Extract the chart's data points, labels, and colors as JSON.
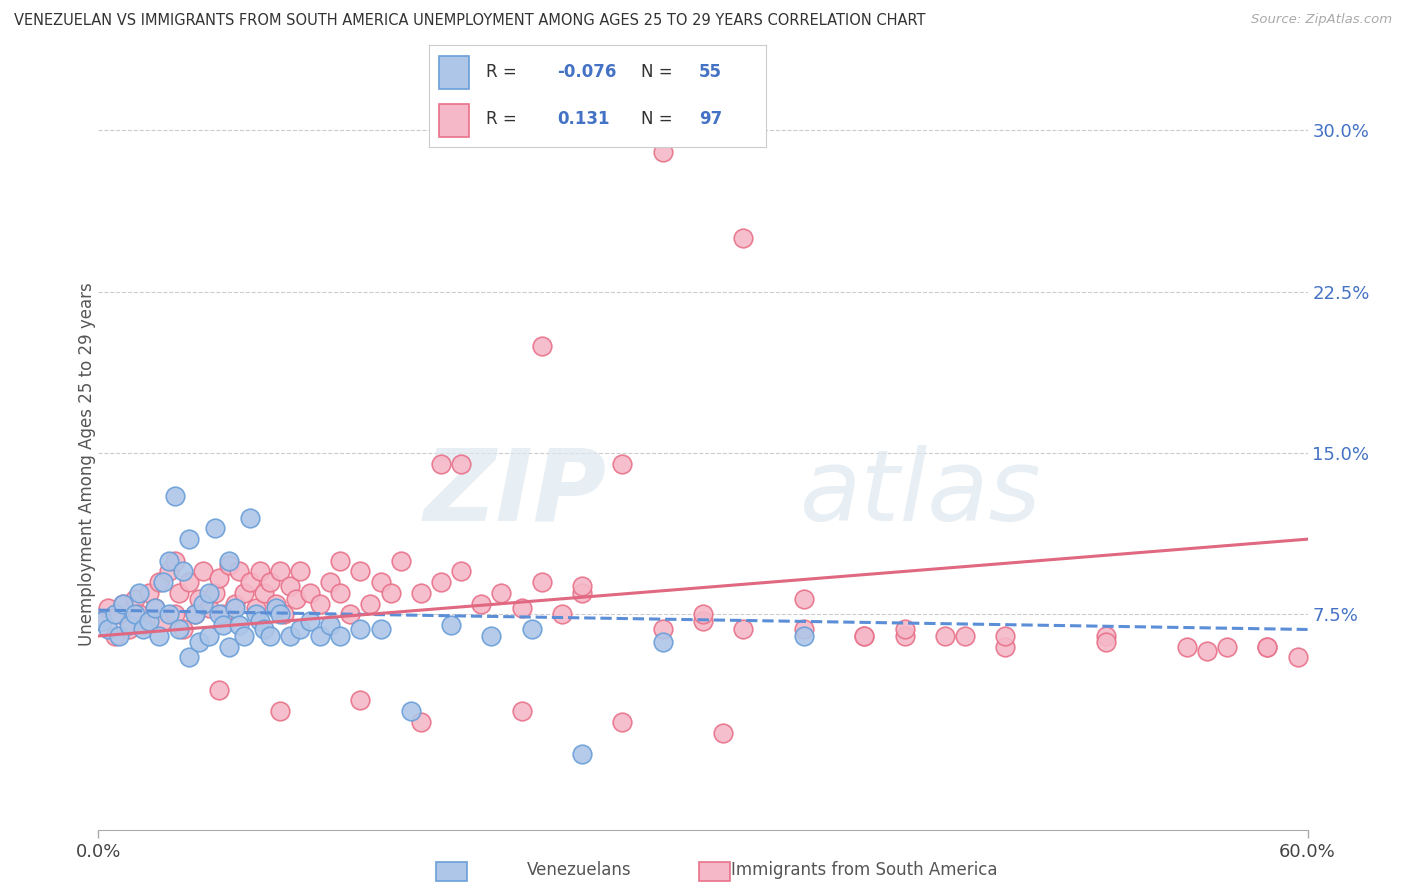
{
  "title": "VENEZUELAN VS IMMIGRANTS FROM SOUTH AMERICA UNEMPLOYMENT AMONG AGES 25 TO 29 YEARS CORRELATION CHART",
  "source": "Source: ZipAtlas.com",
  "ylabel": "Unemployment Among Ages 25 to 29 years",
  "ytick_labels": [
    "7.5%",
    "15.0%",
    "22.5%",
    "30.0%"
  ],
  "ytick_values": [
    0.075,
    0.15,
    0.225,
    0.3
  ],
  "xlim": [
    0.0,
    0.6
  ],
  "ylim": [
    -0.025,
    0.315
  ],
  "legend_r_blue": "-0.076",
  "legend_n_blue": "55",
  "legend_r_pink": "0.131",
  "legend_n_pink": "97",
  "blue_scatter_color": "#aec6e8",
  "blue_edge_color": "#6a9fd8",
  "pink_scatter_color": "#f5b8c8",
  "pink_edge_color": "#e8728a",
  "blue_line_color": "#5b8ed6",
  "pink_line_color": "#e06880",
  "watermark_zip": "ZIP",
  "watermark_atlas": "atlas",
  "background_color": "#ffffff",
  "grid_color": "#cccccc",
  "venezuelans_x": [
    0.002,
    0.005,
    0.008,
    0.01,
    0.012,
    0.015,
    0.018,
    0.02,
    0.022,
    0.025,
    0.028,
    0.03,
    0.032,
    0.035,
    0.035,
    0.038,
    0.04,
    0.042,
    0.045,
    0.045,
    0.048,
    0.05,
    0.052,
    0.055,
    0.055,
    0.058,
    0.06,
    0.062,
    0.065,
    0.065,
    0.068,
    0.07,
    0.072,
    0.075,
    0.078,
    0.08,
    0.082,
    0.085,
    0.088,
    0.09,
    0.095,
    0.1,
    0.105,
    0.11,
    0.115,
    0.12,
    0.13,
    0.14,
    0.155,
    0.175,
    0.195,
    0.215,
    0.24,
    0.28,
    0.35
  ],
  "venezuelans_y": [
    0.072,
    0.068,
    0.075,
    0.065,
    0.08,
    0.07,
    0.075,
    0.085,
    0.068,
    0.072,
    0.078,
    0.065,
    0.09,
    0.075,
    0.1,
    0.13,
    0.068,
    0.095,
    0.055,
    0.11,
    0.075,
    0.062,
    0.08,
    0.085,
    0.065,
    0.115,
    0.075,
    0.07,
    0.1,
    0.06,
    0.078,
    0.07,
    0.065,
    0.12,
    0.075,
    0.072,
    0.068,
    0.065,
    0.078,
    0.075,
    0.065,
    0.068,
    0.072,
    0.065,
    0.07,
    0.065,
    0.068,
    0.068,
    0.03,
    0.07,
    0.065,
    0.068,
    0.01,
    0.062,
    0.065
  ],
  "immigrants_x": [
    0.002,
    0.005,
    0.008,
    0.01,
    0.012,
    0.015,
    0.018,
    0.02,
    0.022,
    0.025,
    0.028,
    0.03,
    0.032,
    0.035,
    0.038,
    0.038,
    0.04,
    0.042,
    0.045,
    0.048,
    0.05,
    0.052,
    0.055,
    0.058,
    0.06,
    0.062,
    0.065,
    0.068,
    0.07,
    0.072,
    0.075,
    0.078,
    0.08,
    0.082,
    0.085,
    0.088,
    0.09,
    0.092,
    0.095,
    0.098,
    0.1,
    0.105,
    0.11,
    0.115,
    0.12,
    0.125,
    0.13,
    0.135,
    0.14,
    0.145,
    0.15,
    0.16,
    0.17,
    0.18,
    0.19,
    0.2,
    0.21,
    0.22,
    0.23,
    0.24,
    0.17,
    0.22,
    0.26,
    0.28,
    0.3,
    0.32,
    0.35,
    0.38,
    0.4,
    0.43,
    0.28,
    0.32,
    0.38,
    0.42,
    0.45,
    0.5,
    0.54,
    0.56,
    0.58,
    0.595,
    0.12,
    0.18,
    0.24,
    0.3,
    0.35,
    0.4,
    0.45,
    0.5,
    0.55,
    0.58,
    0.06,
    0.09,
    0.13,
    0.16,
    0.21,
    0.26,
    0.31
  ],
  "immigrants_y": [
    0.072,
    0.078,
    0.065,
    0.075,
    0.08,
    0.068,
    0.082,
    0.075,
    0.07,
    0.085,
    0.078,
    0.09,
    0.072,
    0.095,
    0.075,
    0.1,
    0.085,
    0.068,
    0.09,
    0.075,
    0.082,
    0.095,
    0.078,
    0.085,
    0.092,
    0.075,
    0.098,
    0.08,
    0.095,
    0.085,
    0.09,
    0.078,
    0.095,
    0.085,
    0.09,
    0.08,
    0.095,
    0.075,
    0.088,
    0.082,
    0.095,
    0.085,
    0.08,
    0.09,
    0.085,
    0.075,
    0.095,
    0.08,
    0.09,
    0.085,
    0.1,
    0.085,
    0.09,
    0.145,
    0.08,
    0.085,
    0.078,
    0.09,
    0.075,
    0.085,
    0.145,
    0.2,
    0.145,
    0.068,
    0.072,
    0.068,
    0.068,
    0.065,
    0.065,
    0.065,
    0.29,
    0.25,
    0.065,
    0.065,
    0.06,
    0.065,
    0.06,
    0.06,
    0.06,
    0.055,
    0.1,
    0.095,
    0.088,
    0.075,
    0.082,
    0.068,
    0.065,
    0.062,
    0.058,
    0.06,
    0.04,
    0.03,
    0.035,
    0.025,
    0.03,
    0.025,
    0.02
  ]
}
